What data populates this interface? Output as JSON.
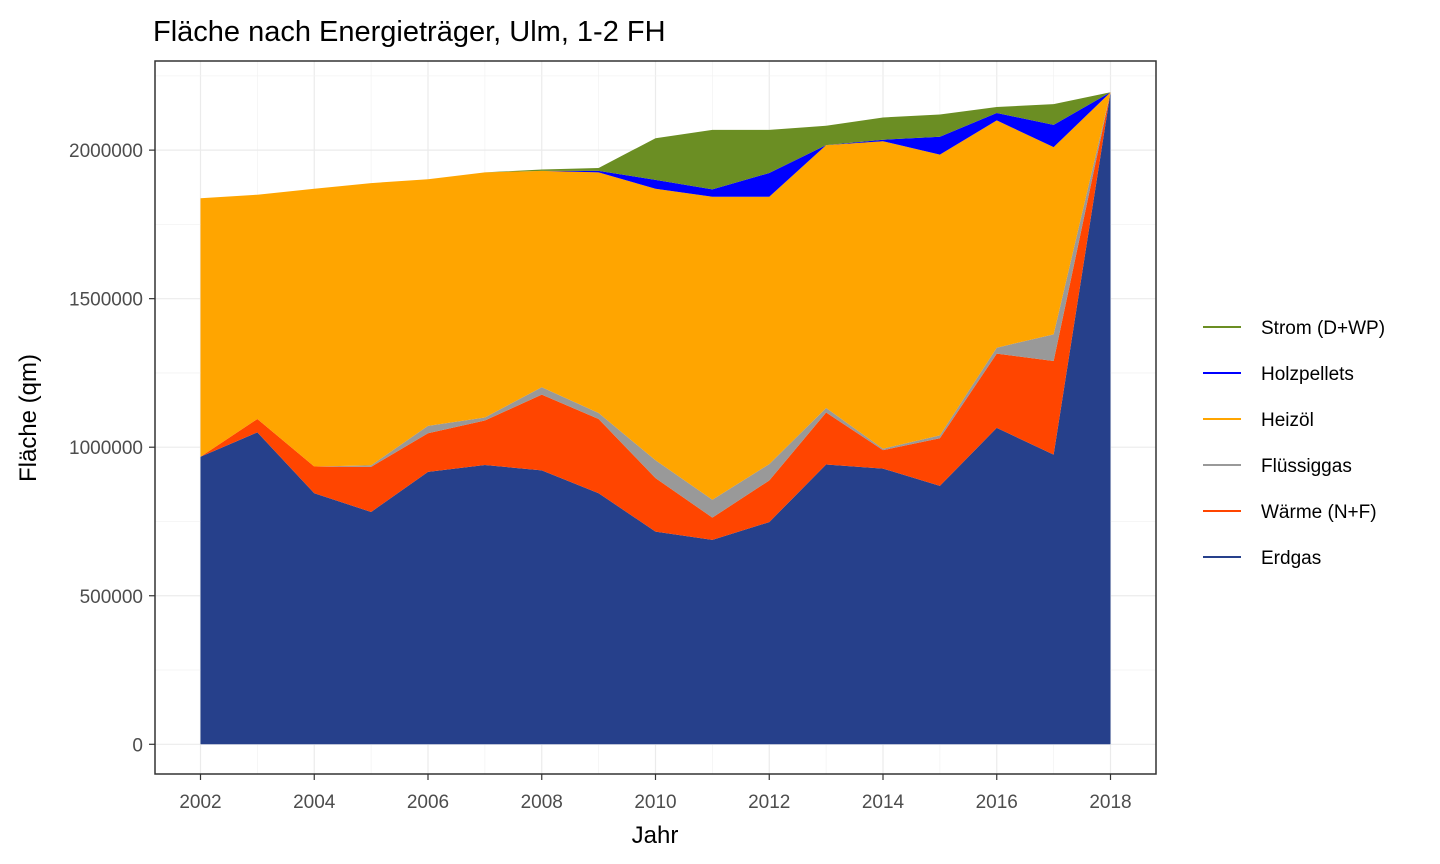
{
  "chart_data": {
    "type": "area",
    "stacked": true,
    "title": "Fläche nach Energieträger, Ulm, 1-2 FH",
    "xlabel": "Jahr",
    "ylabel": "Fläche (qm)",
    "xlim": [
      2001.2,
      2018.8
    ],
    "ylim": [
      -100000,
      2300000
    ],
    "grid": true,
    "legend_position": "right",
    "x": [
      2002,
      2003,
      2004,
      2005,
      2006,
      2007,
      2008,
      2009,
      2010,
      2011,
      2012,
      2013,
      2014,
      2015,
      2016,
      2017,
      2018
    ],
    "x_ticks": [
      2002,
      2004,
      2006,
      2008,
      2010,
      2012,
      2014,
      2016,
      2018
    ],
    "x_tick_labels": [
      "2002",
      "2004",
      "2006",
      "2008",
      "2010",
      "2012",
      "2014",
      "2016",
      "2018"
    ],
    "y_ticks": [
      0,
      500000,
      1000000,
      1500000,
      2000000
    ],
    "y_tick_labels": [
      "0",
      "500000",
      "1000000",
      "1500000",
      "2000000"
    ],
    "series": [
      {
        "name": "Erdgas",
        "color": "#26408B",
        "values": [
          968000,
          1050000,
          845000,
          782000,
          917000,
          940000,
          922000,
          845000,
          716000,
          688000,
          748000,
          942000,
          928000,
          870000,
          1065000,
          975000,
          2195000
        ]
      },
      {
        "name": "Wärme (N+F)",
        "color": "#FF4500",
        "values": [
          0,
          45000,
          90000,
          152000,
          130000,
          150000,
          255000,
          250000,
          180000,
          75000,
          140000,
          175000,
          62000,
          160000,
          250000,
          315000,
          0
        ]
      },
      {
        "name": "Flüssiggas",
        "color": "#999999",
        "values": [
          0,
          0,
          0,
          5000,
          25000,
          10000,
          25000,
          20000,
          60000,
          60000,
          55000,
          15000,
          5000,
          10000,
          20000,
          90000,
          0
        ]
      },
      {
        "name": "Heizöl",
        "color": "#FFA500",
        "values": [
          870000,
          755000,
          935000,
          950000,
          830000,
          825000,
          728000,
          810000,
          914000,
          1020000,
          900000,
          885000,
          1035000,
          945000,
          765000,
          630000,
          0
        ]
      },
      {
        "name": "Holzpellets",
        "color": "#0000FF",
        "values": [
          0,
          0,
          0,
          0,
          0,
          0,
          0,
          5000,
          30000,
          25000,
          80000,
          0,
          5000,
          60000,
          25000,
          75000,
          0
        ]
      },
      {
        "name": "Strom (D+WP)",
        "color": "#6B8E23",
        "values": [
          0,
          0,
          0,
          0,
          0,
          0,
          5000,
          10000,
          140000,
          200000,
          145000,
          65000,
          75000,
          75000,
          20000,
          70000,
          0
        ]
      }
    ],
    "legend_order": [
      "Strom (D+WP)",
      "Holzpellets",
      "Heizöl",
      "Flüssiggas",
      "Wärme (N+F)",
      "Erdgas"
    ]
  }
}
